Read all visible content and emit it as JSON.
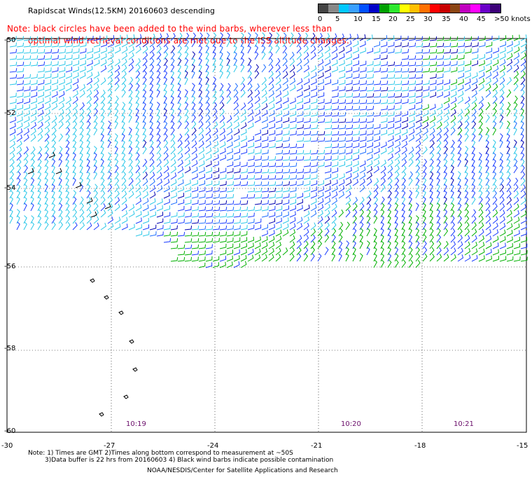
{
  "title": "Rapidscat Winds(12.5KM) 20160603 descending",
  "note_line1": "Note: black circles have been added to the wind barbs, wherever less than",
  "note_line2": "optimal wind retrieval conditions are met due to the ISS altitude changes.",
  "color_scale": {
    "labels": [
      "0",
      "5",
      "10",
      "15",
      "20",
      "25",
      "30",
      "35",
      "40",
      "45",
      ">50 knots"
    ],
    "colors": [
      "#444444",
      "#888888",
      "#00c8ff",
      "#3aa0ff",
      "#0050ff",
      "#0000c8",
      "#00a000",
      "#2ee82e",
      "#ffff00",
      "#ffc000",
      "#ff7000",
      "#ff0000",
      "#c80000",
      "#8b4513",
      "#c000c0",
      "#ff00ff",
      "#6a00c8",
      "#3c0078"
    ]
  },
  "lat_labels": [
    "-50",
    "-52",
    "-54",
    "-56",
    "-58",
    "-60"
  ],
  "lon_labels": [
    "-30",
    "-27",
    "-24",
    "-21",
    "-18",
    "-15"
  ],
  "time_labels": [
    "10:19",
    "10:20",
    "10:21"
  ],
  "footnote_line1": "Note: 1) Times are GMT 2)Times along bottom correspond to measurement at ~50S",
  "footnote_line2": "3)Data buffer is 22 hrs from 20160603 4) Black wind barbs indicate possible contamination",
  "credit": "NOAA/NESDIS/Center for Satellite Applications and Research"
}
